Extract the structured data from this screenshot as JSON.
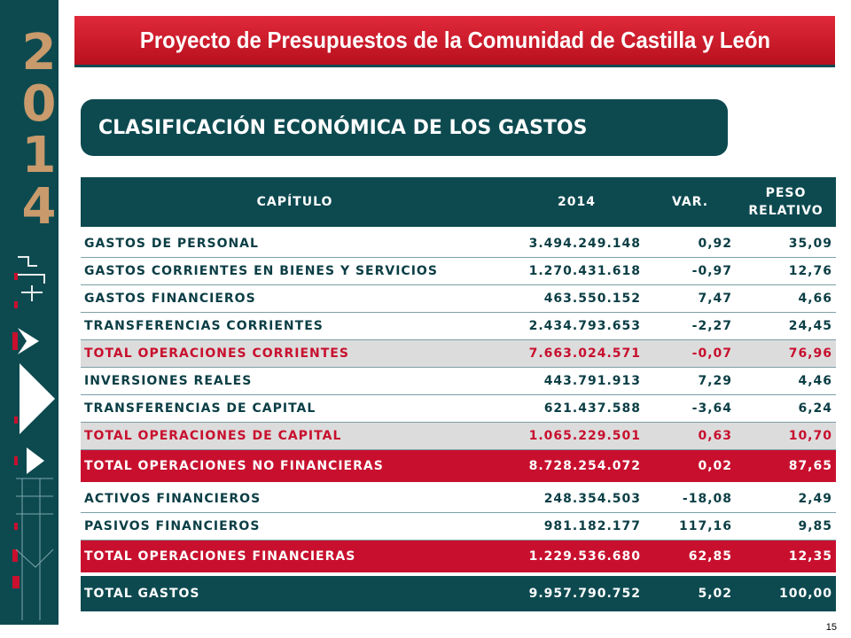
{
  "sidebar": {
    "year_digits": [
      "2",
      "0",
      "1",
      "4"
    ]
  },
  "header": {
    "title": "Proyecto de Presupuestos de la Comunidad de Castilla y León"
  },
  "section": {
    "title": "CLASIFICACIÓN ECONÓMICA DE  LOS GASTOS"
  },
  "table": {
    "columns": [
      "CAPÍTULO",
      "2014",
      "VAR.",
      "PESO",
      "RELATIVO"
    ],
    "rows": [
      {
        "label": "GASTOS DE PERSONAL",
        "value": "3.494.249.148",
        "var": "0,92",
        "peso": "35,09"
      },
      {
        "label": "GASTOS CORRIENTES EN BIENES Y SERVICIOS",
        "value": "1.270.431.618",
        "var": "-0,97",
        "peso": "12,76"
      },
      {
        "label": "GASTOS FINANCIEROS",
        "value": "463.550.152",
        "var": "7,47",
        "peso": "4,66"
      },
      {
        "label": "TRANSFERENCIAS CORRIENTES",
        "value": "2.434.793.653",
        "var": "-2,27",
        "peso": "24,45"
      },
      {
        "label": "TOTAL OPERACIONES CORRIENTES",
        "value": "7.663.024.571",
        "var": "-0,07",
        "peso": "76,96"
      },
      {
        "label": "INVERSIONES REALES",
        "value": "443.791.913",
        "var": "7,29",
        "peso": "4,46"
      },
      {
        "label": "TRANSFERENCIAS DE CAPITAL",
        "value": "621.437.588",
        "var": "-3,64",
        "peso": "6,24"
      },
      {
        "label": "TOTAL OPERACIONES DE CAPITAL",
        "value": "1.065.229.501",
        "var": "0,63",
        "peso": "10,70"
      },
      {
        "label": "TOTAL OPERACIONES  NO FINANCIERAS",
        "value": "8.728.254.072",
        "var": "0,02",
        "peso": "87,65"
      },
      {
        "label": "ACTIVOS FINANCIEROS",
        "value": "248.354.503",
        "var": "-18,08",
        "peso": "2,49"
      },
      {
        "label": "PASIVOS FINANCIEROS",
        "value": "981.182.177",
        "var": "117,16",
        "peso": "9,85"
      },
      {
        "label": "TOTAL OPERACIONES FINANCIERAS",
        "value": "1.229.536.680",
        "var": "62,85",
        "peso": "12,35"
      },
      {
        "label": "TOTAL GASTOS",
        "value": "9.957.790.752",
        "var": "5,02",
        "peso": "100,00"
      }
    ]
  },
  "footer": {
    "page_number": "15"
  }
}
